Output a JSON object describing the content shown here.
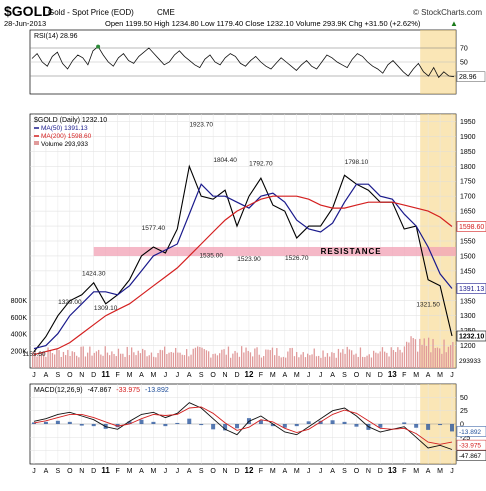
{
  "header": {
    "symbol": "$GOLD",
    "name": "Gold - Spot Price (EOD)",
    "exchange": "CME",
    "watermark": "© StockCharts.com",
    "date": "28-Jun-2013",
    "ohlc": "Open 1199.50  High 1234.80  Low 1179.40  Close 1232.10  Volume 293.9K  Chg +31.50 (+2.62%)",
    "chg_arrow": "▲"
  },
  "rsi": {
    "label": "RSI(14) 28.96",
    "levels": [
      70,
      50,
      30
    ],
    "last_label": "28.96",
    "values": [
      55,
      62,
      50,
      44,
      58,
      64,
      48,
      40,
      52,
      60,
      56,
      46,
      66,
      72,
      60,
      50,
      44,
      56,
      62,
      52,
      48,
      58,
      64,
      70,
      62,
      54,
      46,
      50,
      60,
      66,
      58,
      52,
      46,
      42,
      54,
      60,
      50,
      46,
      56,
      62,
      58,
      48,
      44,
      52,
      58,
      50,
      44,
      40,
      48,
      56,
      50,
      44,
      38,
      46,
      52,
      44,
      40,
      50,
      60,
      56,
      50,
      46,
      42,
      54,
      62,
      58,
      50,
      44,
      40,
      34,
      46,
      52,
      44,
      36,
      30,
      40,
      48,
      36,
      30,
      42,
      28,
      36,
      30,
      28.96
    ]
  },
  "main": {
    "legend_title": "$GOLD (Daily) 1232.10",
    "legend_ma50": "MA(50) 1391.13",
    "legend_ma200": "MA(200) 1598.60",
    "legend_vol": "Volume 293,933",
    "resistance_label": "RESISTANCE",
    "annotations": [
      "1155.60",
      "1329.00",
      "1424.30",
      "1309.10",
      "1577.40",
      "1923.70",
      "1535.00",
      "1804.40",
      "1523.90",
      "1792.70",
      "1526.70",
      "1798.10",
      "1321.50"
    ],
    "right_labels": {
      "ma200": "1598.60",
      "ma50": "1391.13",
      "close": "1232.10",
      "volume": "293933"
    },
    "vol_axis": [
      "800K",
      "600K",
      "400K",
      "200K"
    ],
    "x_labels": [
      "J",
      "A",
      "S",
      "O",
      "N",
      "D",
      "11",
      "F",
      "M",
      "A",
      "M",
      "J",
      "J",
      "A",
      "S",
      "O",
      "N",
      "D",
      "12",
      "F",
      "M",
      "A",
      "M",
      "J",
      "J",
      "A",
      "S",
      "O",
      "N",
      "D",
      "13",
      "F",
      "M",
      "A",
      "M",
      "J"
    ]
  },
  "macd": {
    "label": "MACD(12,26,9) -47.867, -33.975, -13.892",
    "label_parts": {
      "prefix": "MACD(12,26,9)",
      "macd": "-47.867",
      "signal": "-33.975",
      "hist": "-13.892"
    },
    "right_labels": [
      "-13.892",
      "-33.975",
      "-47.867"
    ]
  },
  "colors": {
    "price": "#000000",
    "ma50": "#1a1a8c",
    "ma200": "#d42020",
    "volume": "#e09a9a",
    "highlight": "#f5d27a",
    "resistance": "#f2a0b4",
    "rsi_fill": "#2e8b3a",
    "macd_hist": "#1f4e9a"
  },
  "chart_data": {
    "type": "line",
    "title": "$GOLD Gold - Spot Price (EOD) CME",
    "x": [
      "2010-07",
      "2010-08",
      "2010-09",
      "2010-10",
      "2010-11",
      "2010-12",
      "2011-01",
      "2011-02",
      "2011-03",
      "2011-04",
      "2011-05",
      "2011-06",
      "2011-07",
      "2011-08",
      "2011-09",
      "2011-10",
      "2011-11",
      "2011-12",
      "2012-01",
      "2012-02",
      "2012-03",
      "2012-04",
      "2012-05",
      "2012-06",
      "2012-07",
      "2012-08",
      "2012-09",
      "2012-10",
      "2012-11",
      "2012-12",
      "2013-01",
      "2013-02",
      "2013-03",
      "2013-04",
      "2013-05",
      "2013-06"
    ],
    "ylim": [
      1150,
      1950
    ],
    "series": [
      {
        "name": "$GOLD",
        "values": [
          1180,
          1230,
          1300,
          1350,
          1370,
          1410,
          1340,
          1370,
          1420,
          1500,
          1530,
          1510,
          1590,
          1800,
          1700,
          1690,
          1720,
          1600,
          1700,
          1760,
          1670,
          1650,
          1560,
          1600,
          1600,
          1660,
          1770,
          1740,
          1720,
          1680,
          1680,
          1590,
          1600,
          1420,
          1400,
          1232.1
        ]
      },
      {
        "name": "MA(50)",
        "values": [
          1190,
          1200,
          1240,
          1300,
          1340,
          1380,
          1380,
          1370,
          1400,
          1450,
          1500,
          1520,
          1540,
          1640,
          1740,
          1700,
          1700,
          1680,
          1660,
          1700,
          1710,
          1680,
          1620,
          1590,
          1580,
          1610,
          1680,
          1740,
          1740,
          1700,
          1690,
          1640,
          1600,
          1530,
          1440,
          1391.13
        ]
      },
      {
        "name": "MA(200)",
        "values": [
          1170,
          1180,
          1190,
          1210,
          1240,
          1270,
          1300,
          1320,
          1340,
          1370,
          1400,
          1430,
          1460,
          1500,
          1540,
          1580,
          1620,
          1650,
          1670,
          1690,
          1700,
          1700,
          1700,
          1690,
          1670,
          1660,
          1660,
          1670,
          1680,
          1680,
          1680,
          1670,
          1660,
          1650,
          1630,
          1598.6
        ]
      }
    ],
    "resistance": [
      1500,
      1530
    ],
    "annotations": [
      {
        "label": "1155.60",
        "x": "2010-07",
        "y": 1155.6
      },
      {
        "label": "1329.00",
        "x": "2010-10",
        "y": 1329
      },
      {
        "label": "1424.30",
        "x": "2010-12",
        "y": 1424.3
      },
      {
        "label": "1309.10",
        "x": "2011-01",
        "y": 1309.1
      },
      {
        "label": "1577.40",
        "x": "2011-05",
        "y": 1577.4
      },
      {
        "label": "1923.70",
        "x": "2011-09",
        "y": 1923.7
      },
      {
        "label": "1535.00",
        "x": "2011-09",
        "y": 1535
      },
      {
        "label": "1804.40",
        "x": "2011-11",
        "y": 1804.4
      },
      {
        "label": "1523.90",
        "x": "2012-01",
        "y": 1523.9
      },
      {
        "label": "1792.70",
        "x": "2012-02",
        "y": 1792.7
      },
      {
        "label": "1526.70",
        "x": "2012-05",
        "y": 1526.7
      },
      {
        "label": "1798.10",
        "x": "2012-10",
        "y": 1798.1
      },
      {
        "label": "1321.50",
        "x": "2013-04",
        "y": 1321.5
      }
    ]
  }
}
